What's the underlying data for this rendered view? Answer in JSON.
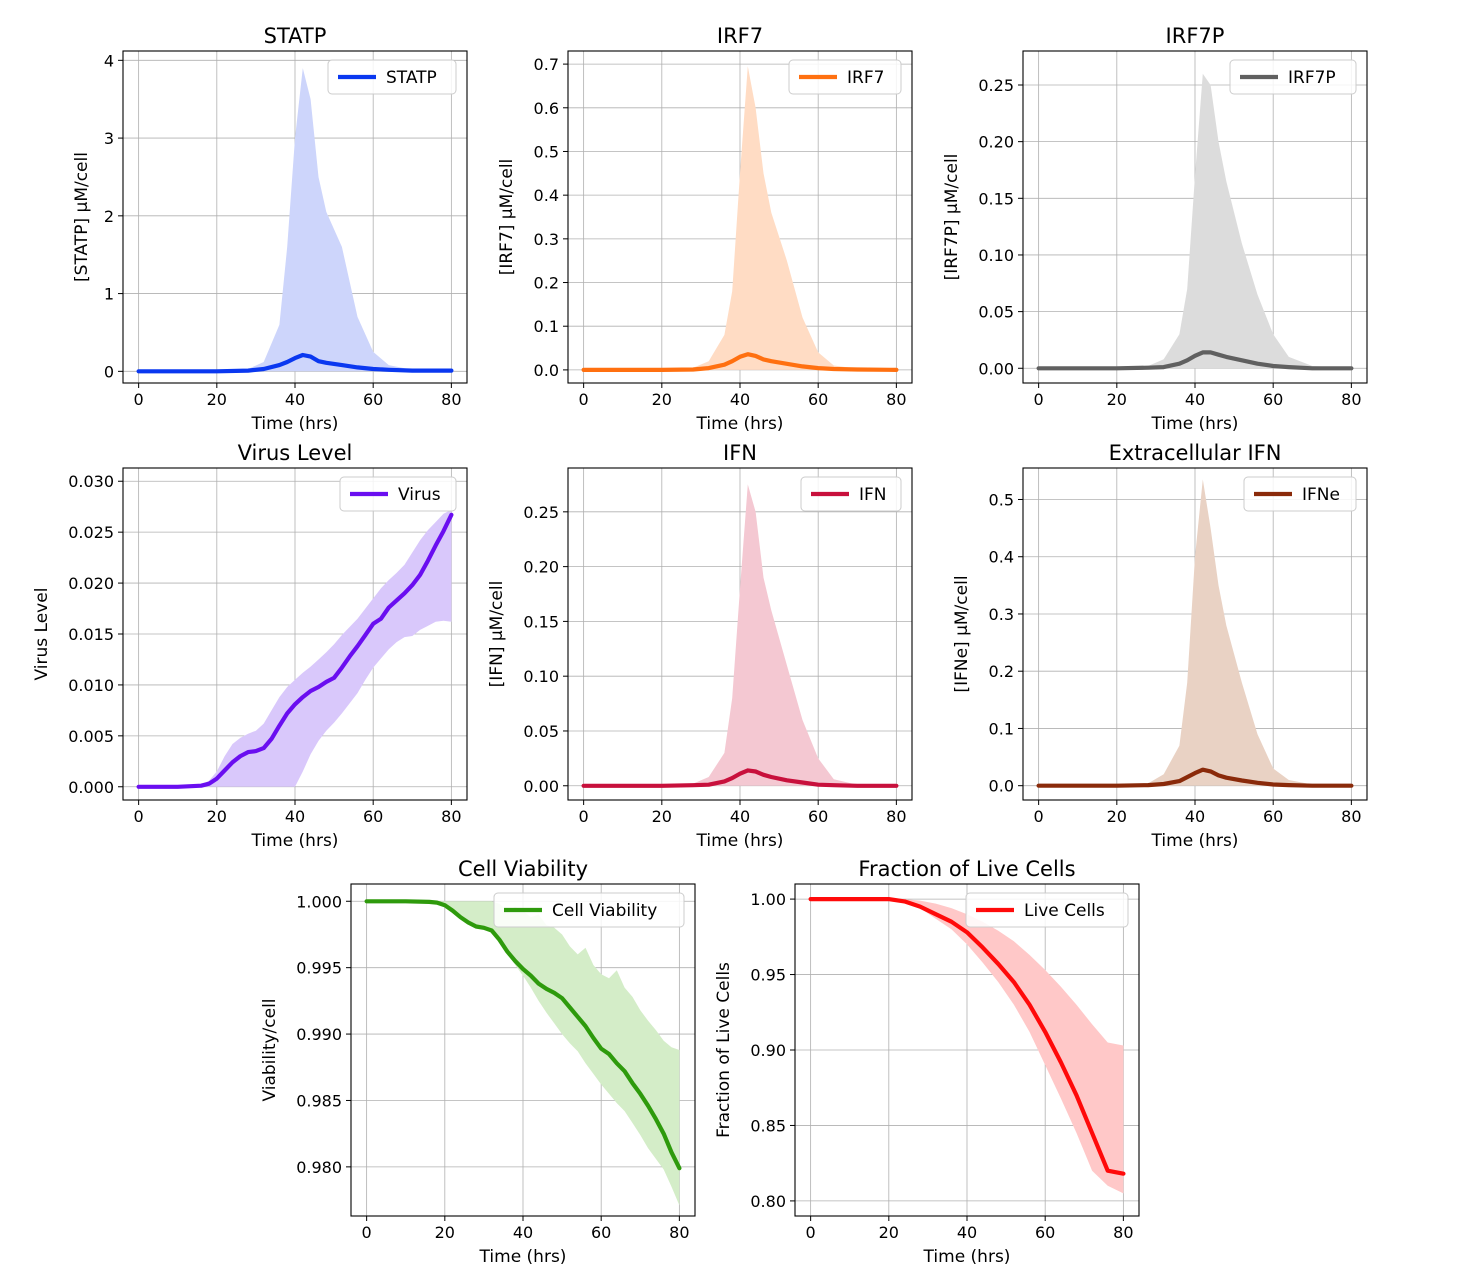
{
  "chart_data": [
    {
      "type": "line",
      "title": "STATP",
      "xlabel": "Time (hrs)",
      "ylabel": "[STATP] μM/cell",
      "xlim": [
        -4,
        84
      ],
      "ylim": [
        -0.15,
        4.12
      ],
      "xticks": [
        0,
        20,
        40,
        60,
        80
      ],
      "xtick_labels": [
        "0",
        "20",
        "40",
        "60",
        "80"
      ],
      "yticks": [
        0,
        1,
        2,
        3,
        4
      ],
      "ytick_labels": [
        "0",
        "1",
        "2",
        "3",
        "4"
      ],
      "grid": true,
      "legend_position": "top-right",
      "series": [
        {
          "name": "STATP",
          "color": "#0a38f0",
          "band_color": "#cdd5fb",
          "x": [
            0,
            20,
            28,
            32,
            36,
            38,
            40,
            42,
            44,
            46,
            48,
            52,
            56,
            60,
            64,
            70,
            80
          ],
          "mean": [
            0,
            0,
            0.01,
            0.03,
            0.08,
            0.12,
            0.17,
            0.21,
            0.19,
            0.13,
            0.11,
            0.08,
            0.05,
            0.03,
            0.02,
            0.01,
            0.01
          ],
          "lower": [
            0,
            0,
            0,
            0,
            0,
            0,
            0,
            0,
            0,
            0,
            0,
            0,
            0,
            0,
            0,
            0,
            0
          ],
          "upper": [
            0,
            0,
            0.03,
            0.12,
            0.6,
            1.6,
            3.0,
            3.9,
            3.5,
            2.5,
            2.05,
            1.6,
            0.7,
            0.25,
            0.08,
            0.02,
            0.01
          ]
        }
      ]
    },
    {
      "type": "line",
      "title": "IRF7",
      "xlabel": "Time (hrs)",
      "ylabel": "[IRF7] μM/cell",
      "xlim": [
        -4,
        84
      ],
      "ylim": [
        -0.03,
        0.73
      ],
      "xticks": [
        0,
        20,
        40,
        60,
        80
      ],
      "xtick_labels": [
        "0",
        "20",
        "40",
        "60",
        "80"
      ],
      "yticks": [
        0,
        0.1,
        0.2,
        0.3,
        0.4,
        0.5,
        0.6,
        0.7
      ],
      "ytick_labels": [
        "0.0",
        "0.1",
        "0.2",
        "0.3",
        "0.4",
        "0.5",
        "0.6",
        "0.7"
      ],
      "grid": true,
      "legend_position": "top-right",
      "series": [
        {
          "name": "IRF7",
          "color": "#ff7010",
          "band_color": "#ffdcc4",
          "x": [
            0,
            20,
            28,
            32,
            36,
            38,
            40,
            42,
            44,
            46,
            48,
            52,
            56,
            60,
            64,
            70,
            80
          ],
          "mean": [
            0,
            0,
            0.001,
            0.004,
            0.012,
            0.02,
            0.03,
            0.036,
            0.032,
            0.024,
            0.02,
            0.014,
            0.008,
            0.004,
            0.002,
            0.001,
            0
          ],
          "lower": [
            0,
            0,
            0,
            0,
            0,
            0,
            0,
            0,
            0,
            0,
            0,
            0,
            0,
            0,
            0,
            0,
            0
          ],
          "upper": [
            0,
            0,
            0.005,
            0.02,
            0.08,
            0.18,
            0.45,
            0.695,
            0.6,
            0.45,
            0.36,
            0.25,
            0.12,
            0.04,
            0.01,
            0.003,
            0
          ]
        }
      ]
    },
    {
      "type": "line",
      "title": "IRF7P",
      "xlabel": "Time (hrs)",
      "ylabel": "[IRF7P] μM/cell",
      "xlim": [
        -4,
        84
      ],
      "ylim": [
        -0.013,
        0.28
      ],
      "xticks": [
        0,
        20,
        40,
        60,
        80
      ],
      "xtick_labels": [
        "0",
        "20",
        "40",
        "60",
        "80"
      ],
      "yticks": [
        0,
        0.05,
        0.1,
        0.15,
        0.2,
        0.25
      ],
      "ytick_labels": [
        "0.00",
        "0.05",
        "0.10",
        "0.15",
        "0.20",
        "0.25"
      ],
      "grid": true,
      "legend_position": "top-right",
      "series": [
        {
          "name": "IRF7P",
          "color": "#606060",
          "band_color": "#dcdcdc",
          "x": [
            0,
            20,
            28,
            32,
            36,
            38,
            40,
            42,
            44,
            46,
            48,
            52,
            56,
            60,
            64,
            70,
            80
          ],
          "mean": [
            0,
            0,
            0.0005,
            0.001,
            0.004,
            0.007,
            0.011,
            0.014,
            0.014,
            0.012,
            0.01,
            0.007,
            0.004,
            0.002,
            0.001,
            0,
            0
          ],
          "lower": [
            0,
            0,
            0,
            0,
            0,
            0,
            0,
            0,
            0,
            0,
            0,
            0,
            0,
            0,
            0,
            0,
            0
          ],
          "upper": [
            0,
            0,
            0.002,
            0.008,
            0.03,
            0.07,
            0.17,
            0.26,
            0.25,
            0.2,
            0.165,
            0.11,
            0.065,
            0.03,
            0.01,
            0.002,
            0
          ]
        }
      ]
    },
    {
      "type": "line",
      "title": "Virus Level",
      "xlabel": "Time (hrs)",
      "ylabel": "Virus Level",
      "xlim": [
        -4,
        84
      ],
      "ylim": [
        -0.0013,
        0.0313
      ],
      "xticks": [
        0,
        20,
        40,
        60,
        80
      ],
      "xtick_labels": [
        "0",
        "20",
        "40",
        "60",
        "80"
      ],
      "yticks": [
        0,
        0.005,
        0.01,
        0.015,
        0.02,
        0.025,
        0.03
      ],
      "ytick_labels": [
        "0.000",
        "0.005",
        "0.010",
        "0.015",
        "0.020",
        "0.025",
        "0.030"
      ],
      "grid": true,
      "legend_position": "top-right",
      "series": [
        {
          "name": "Virus",
          "color": "#6a0ef0",
          "band_color": "#d9c8fb",
          "x": [
            0,
            10,
            16,
            18,
            20,
            22,
            24,
            26,
            28,
            30,
            32,
            34,
            36,
            38,
            40,
            42,
            44,
            46,
            48,
            50,
            52,
            54,
            56,
            58,
            60,
            62,
            64,
            66,
            68,
            70,
            72,
            74,
            76,
            78,
            80
          ],
          "mean": [
            0,
            0,
            0.0001,
            0.0003,
            0.0008,
            0.0016,
            0.0024,
            0.003,
            0.0034,
            0.0035,
            0.0038,
            0.0047,
            0.006,
            0.0072,
            0.0081,
            0.0088,
            0.0094,
            0.0098,
            0.0103,
            0.0107,
            0.0117,
            0.0128,
            0.0138,
            0.0149,
            0.016,
            0.0165,
            0.0176,
            0.0183,
            0.019,
            0.0198,
            0.0208,
            0.0222,
            0.0237,
            0.0251,
            0.0267
          ],
          "lower": [
            0,
            0,
            0,
            0,
            0,
            0,
            0,
            0,
            0,
            0,
            0,
            0,
            0,
            0,
            0,
            0.0015,
            0.0032,
            0.0045,
            0.0055,
            0.0063,
            0.0072,
            0.0082,
            0.0092,
            0.0105,
            0.0117,
            0.0126,
            0.0135,
            0.0142,
            0.0147,
            0.0148,
            0.0154,
            0.0158,
            0.0162,
            0.0163,
            0.0162
          ],
          "upper": [
            0,
            0,
            0.0002,
            0.0006,
            0.0015,
            0.003,
            0.0042,
            0.0048,
            0.0052,
            0.0055,
            0.0062,
            0.0075,
            0.0088,
            0.0098,
            0.0105,
            0.0112,
            0.0118,
            0.0125,
            0.0132,
            0.014,
            0.0149,
            0.0157,
            0.0165,
            0.0175,
            0.0185,
            0.0195,
            0.0203,
            0.021,
            0.0218,
            0.023,
            0.0242,
            0.0252,
            0.026,
            0.0268,
            0.0272
          ]
        }
      ]
    },
    {
      "type": "line",
      "title": "IFN",
      "xlabel": "Time (hrs)",
      "ylabel": "[IFN] μM/cell",
      "xlim": [
        -4,
        84
      ],
      "ylim": [
        -0.013,
        0.29
      ],
      "xticks": [
        0,
        20,
        40,
        60,
        80
      ],
      "xtick_labels": [
        "0",
        "20",
        "40",
        "60",
        "80"
      ],
      "yticks": [
        0,
        0.05,
        0.1,
        0.15,
        0.2,
        0.25
      ],
      "ytick_labels": [
        "0.00",
        "0.05",
        "0.10",
        "0.15",
        "0.20",
        "0.25"
      ],
      "grid": true,
      "legend_position": "top-right",
      "series": [
        {
          "name": "IFN",
          "color": "#c8103c",
          "band_color": "#f4c8d2",
          "x": [
            0,
            20,
            28,
            32,
            36,
            38,
            40,
            42,
            44,
            46,
            48,
            52,
            56,
            60,
            64,
            70,
            80
          ],
          "mean": [
            0,
            0,
            0.0005,
            0.001,
            0.004,
            0.007,
            0.011,
            0.014,
            0.013,
            0.01,
            0.008,
            0.005,
            0.003,
            0.001,
            0.0005,
            0,
            0
          ],
          "lower": [
            0,
            0,
            0,
            0,
            0,
            0,
            0,
            0,
            0,
            0,
            0,
            0,
            0,
            0,
            0,
            0,
            0
          ],
          "upper": [
            0,
            0,
            0.002,
            0.008,
            0.03,
            0.08,
            0.18,
            0.275,
            0.25,
            0.19,
            0.16,
            0.11,
            0.06,
            0.025,
            0.006,
            0.001,
            0
          ]
        }
      ]
    },
    {
      "type": "line",
      "title": "Extracellular IFN",
      "xlabel": "Time (hrs)",
      "ylabel": "[IFNe] μM/cell",
      "xlim": [
        -4,
        84
      ],
      "ylim": [
        -0.025,
        0.555
      ],
      "xticks": [
        0,
        20,
        40,
        60,
        80
      ],
      "xtick_labels": [
        "0",
        "20",
        "40",
        "60",
        "80"
      ],
      "yticks": [
        0,
        0.1,
        0.2,
        0.3,
        0.4,
        0.5
      ],
      "ytick_labels": [
        "0.0",
        "0.1",
        "0.2",
        "0.3",
        "0.4",
        "0.5"
      ],
      "grid": true,
      "legend_position": "top-right",
      "series": [
        {
          "name": "IFNe",
          "color": "#8a2a0a",
          "band_color": "#e9d2c4",
          "x": [
            0,
            20,
            28,
            32,
            36,
            38,
            40,
            42,
            44,
            46,
            48,
            52,
            56,
            60,
            64,
            70,
            80
          ],
          "mean": [
            0,
            0,
            0.001,
            0.003,
            0.008,
            0.015,
            0.022,
            0.028,
            0.025,
            0.018,
            0.014,
            0.009,
            0.005,
            0.002,
            0.001,
            0,
            0
          ],
          "lower": [
            0,
            0,
            0,
            0,
            0,
            0,
            0,
            0,
            0,
            0,
            0,
            0,
            0,
            0,
            0,
            0,
            0
          ],
          "upper": [
            0,
            0,
            0.004,
            0.02,
            0.07,
            0.18,
            0.4,
            0.535,
            0.45,
            0.35,
            0.28,
            0.18,
            0.09,
            0.03,
            0.01,
            0.002,
            0
          ]
        }
      ]
    },
    {
      "type": "line",
      "title": "Cell Viability",
      "xlabel": "Time (hrs)",
      "ylabel": "Viability/cell",
      "xlim": [
        -4,
        84
      ],
      "ylim": [
        0.9763,
        1.0013
      ],
      "xticks": [
        0,
        20,
        40,
        60,
        80
      ],
      "xtick_labels": [
        "0",
        "20",
        "40",
        "60",
        "80"
      ],
      "yticks": [
        0.98,
        0.985,
        0.99,
        0.995,
        1.0
      ],
      "ytick_labels": [
        "0.980",
        "0.985",
        "0.990",
        "0.995",
        "1.000"
      ],
      "grid": true,
      "legend_position": "top-right",
      "series": [
        {
          "name": "Cell Viability",
          "color": "#2e9a0c",
          "band_color": "#d4edc8",
          "x": [
            0,
            10,
            16,
            18,
            20,
            22,
            24,
            26,
            28,
            30,
            32,
            34,
            36,
            38,
            40,
            42,
            44,
            46,
            48,
            50,
            52,
            54,
            56,
            58,
            60,
            62,
            64,
            66,
            68,
            70,
            72,
            74,
            76,
            78,
            80
          ],
          "mean": [
            1.0,
            1.0,
            0.99995,
            0.9999,
            0.9997,
            0.9993,
            0.9988,
            0.9984,
            0.9981,
            0.998,
            0.9978,
            0.9971,
            0.9962,
            0.9955,
            0.9949,
            0.9944,
            0.9938,
            0.9934,
            0.9931,
            0.9927,
            0.992,
            0.9913,
            0.9906,
            0.9897,
            0.9889,
            0.9885,
            0.9878,
            0.9872,
            0.9863,
            0.9855,
            0.9846,
            0.9836,
            0.9825,
            0.9811,
            0.9799
          ],
          "lower": [
            1.0,
            1.0,
            0.99995,
            0.9999,
            0.9997,
            0.9993,
            0.9988,
            0.9984,
            0.9981,
            0.998,
            0.9978,
            0.9971,
            0.9962,
            0.9952,
            0.9944,
            0.9935,
            0.9925,
            0.9916,
            0.9908,
            0.99,
            0.9893,
            0.9887,
            0.9878,
            0.987,
            0.9862,
            0.9855,
            0.9848,
            0.9842,
            0.9833,
            0.9824,
            0.9814,
            0.9806,
            0.9798,
            0.9785,
            0.9771
          ],
          "upper": [
            1.0,
            1.0,
            1.0,
            1.0,
            1.0,
            1.0,
            1.0,
            1.0,
            1.0,
            1.0,
            1.0,
            0.9998,
            0.9993,
            0.9996,
            0.9993,
            0.9988,
            0.999,
            0.9982,
            0.998,
            0.9975,
            0.9966,
            0.996,
            0.9965,
            0.9952,
            0.9945,
            0.9942,
            0.9948,
            0.9935,
            0.9928,
            0.9918,
            0.991,
            0.9903,
            0.9895,
            0.989,
            0.9888
          ]
        }
      ]
    },
    {
      "type": "line",
      "title": "Fraction of Live Cells",
      "xlabel": "Time (hrs)",
      "ylabel": "Fraction of Live Cells",
      "xlim": [
        -4,
        84
      ],
      "ylim": [
        0.79,
        1.01
      ],
      "xticks": [
        0,
        20,
        40,
        60,
        80
      ],
      "xtick_labels": [
        "0",
        "20",
        "40",
        "60",
        "80"
      ],
      "yticks": [
        0.8,
        0.85,
        0.9,
        0.95,
        1.0
      ],
      "ytick_labels": [
        "0.80",
        "0.85",
        "0.90",
        "0.95",
        "1.00"
      ],
      "grid": true,
      "legend_position": "top-right",
      "series": [
        {
          "name": "Live Cells",
          "color": "#ff0a0a",
          "band_color": "#ffc8c8",
          "x": [
            0,
            20,
            24,
            28,
            32,
            36,
            40,
            44,
            48,
            52,
            56,
            60,
            64,
            68,
            72,
            76,
            80
          ],
          "mean": [
            1.0,
            1.0,
            0.9985,
            0.995,
            0.99,
            0.985,
            0.978,
            0.968,
            0.957,
            0.945,
            0.93,
            0.912,
            0.892,
            0.87,
            0.845,
            0.82,
            0.818
          ],
          "lower": [
            1.0,
            1.0,
            0.998,
            0.994,
            0.987,
            0.98,
            0.97,
            0.958,
            0.945,
            0.93,
            0.912,
            0.89,
            0.868,
            0.845,
            0.82,
            0.81,
            0.805
          ],
          "upper": [
            1.0,
            1.0,
            1.0,
            0.999,
            0.997,
            0.994,
            0.99,
            0.985,
            0.979,
            0.972,
            0.963,
            0.953,
            0.942,
            0.93,
            0.917,
            0.905,
            0.903
          ]
        }
      ]
    }
  ]
}
